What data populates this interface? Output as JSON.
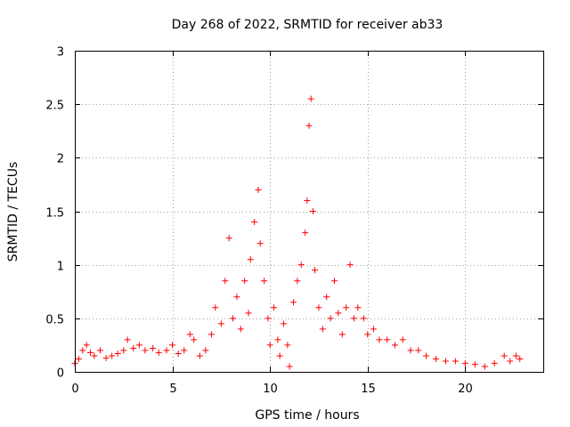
{
  "chart_data": {
    "type": "scatter",
    "title": "Day 268 of 2022, SRMTID for receiver ab33",
    "xlabel": "GPS time / hours",
    "ylabel": "SRMTID / TECUs",
    "xlim": [
      0,
      24
    ],
    "ylim": [
      0,
      3
    ],
    "x_ticks": [
      0,
      5,
      10,
      15,
      20
    ],
    "x_tick_labels": [
      "0",
      "5",
      "10",
      "15",
      "20"
    ],
    "y_ticks": [
      0,
      0.5,
      1,
      1.5,
      2,
      2.5,
      3
    ],
    "y_tick_labels": [
      "0",
      "0.5",
      "1",
      "1.5",
      "2",
      "2.5",
      "3"
    ],
    "grid": true,
    "marker": "+",
    "color": "#ff0000",
    "series": [
      {
        "name": "ab33",
        "points": [
          [
            0.0,
            0.08
          ],
          [
            0.2,
            0.12
          ],
          [
            0.4,
            0.2
          ],
          [
            0.6,
            0.25
          ],
          [
            0.8,
            0.18
          ],
          [
            1.0,
            0.15
          ],
          [
            1.3,
            0.2
          ],
          [
            1.6,
            0.13
          ],
          [
            1.9,
            0.15
          ],
          [
            2.2,
            0.17
          ],
          [
            2.5,
            0.2
          ],
          [
            2.7,
            0.3
          ],
          [
            3.0,
            0.22
          ],
          [
            3.3,
            0.25
          ],
          [
            3.6,
            0.2
          ],
          [
            4.0,
            0.22
          ],
          [
            4.3,
            0.18
          ],
          [
            4.7,
            0.2
          ],
          [
            5.0,
            0.25
          ],
          [
            5.3,
            0.17
          ],
          [
            5.6,
            0.2
          ],
          [
            5.9,
            0.35
          ],
          [
            6.1,
            0.3
          ],
          [
            6.4,
            0.15
          ],
          [
            6.7,
            0.2
          ],
          [
            7.0,
            0.35
          ],
          [
            7.2,
            0.6
          ],
          [
            7.5,
            0.45
          ],
          [
            7.7,
            0.85
          ],
          [
            7.9,
            1.25
          ],
          [
            8.1,
            0.5
          ],
          [
            8.3,
            0.7
          ],
          [
            8.5,
            0.4
          ],
          [
            8.7,
            0.85
          ],
          [
            8.9,
            0.55
          ],
          [
            9.0,
            1.05
          ],
          [
            9.2,
            1.4
          ],
          [
            9.4,
            1.7
          ],
          [
            9.5,
            1.2
          ],
          [
            9.7,
            0.85
          ],
          [
            9.9,
            0.5
          ],
          [
            10.0,
            0.25
          ],
          [
            10.2,
            0.6
          ],
          [
            10.4,
            0.3
          ],
          [
            10.5,
            0.15
          ],
          [
            10.7,
            0.45
          ],
          [
            10.9,
            0.25
          ],
          [
            11.0,
            0.05
          ],
          [
            11.2,
            0.65
          ],
          [
            11.4,
            0.85
          ],
          [
            11.6,
            1.0
          ],
          [
            11.8,
            1.3
          ],
          [
            11.9,
            1.6
          ],
          [
            12.0,
            2.3
          ],
          [
            12.1,
            2.55
          ],
          [
            12.2,
            1.5
          ],
          [
            12.3,
            0.95
          ],
          [
            12.5,
            0.6
          ],
          [
            12.7,
            0.4
          ],
          [
            12.9,
            0.7
          ],
          [
            13.1,
            0.5
          ],
          [
            13.3,
            0.85
          ],
          [
            13.5,
            0.55
          ],
          [
            13.7,
            0.35
          ],
          [
            13.9,
            0.6
          ],
          [
            14.1,
            1.0
          ],
          [
            14.3,
            0.5
          ],
          [
            14.5,
            0.6
          ],
          [
            14.8,
            0.5
          ],
          [
            15.0,
            0.35
          ],
          [
            15.3,
            0.4
          ],
          [
            15.6,
            0.3
          ],
          [
            16.0,
            0.3
          ],
          [
            16.4,
            0.25
          ],
          [
            16.8,
            0.3
          ],
          [
            17.2,
            0.2
          ],
          [
            17.6,
            0.2
          ],
          [
            18.0,
            0.15
          ],
          [
            18.5,
            0.12
          ],
          [
            19.0,
            0.1
          ],
          [
            19.5,
            0.1
          ],
          [
            20.0,
            0.08
          ],
          [
            20.5,
            0.07
          ],
          [
            21.0,
            0.05
          ],
          [
            21.5,
            0.08
          ],
          [
            22.0,
            0.15
          ],
          [
            22.3,
            0.1
          ],
          [
            22.6,
            0.15
          ],
          [
            22.8,
            0.12
          ]
        ]
      }
    ]
  }
}
